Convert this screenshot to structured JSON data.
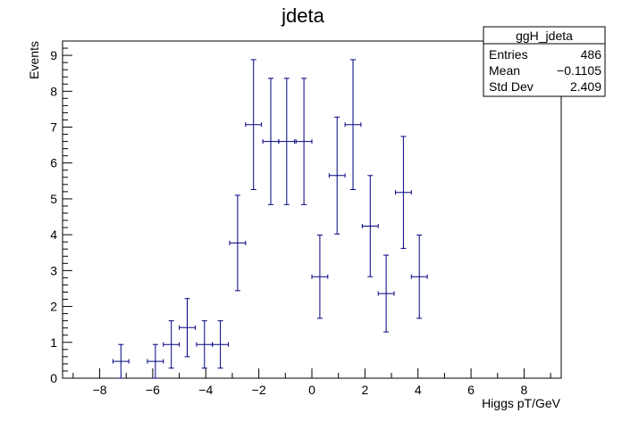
{
  "chart_data": {
    "type": "scatter",
    "title": "jdeta",
    "xlabel": "Higgs pT/GeV",
    "ylabel": "Events",
    "xlim": [
      -9.4,
      9.4
    ],
    "ylim": [
      0,
      9.4
    ],
    "xticks": [
      -8,
      -6,
      -4,
      -2,
      0,
      2,
      4,
      6,
      8
    ],
    "yticks": [
      0,
      1,
      2,
      3,
      4,
      5,
      6,
      7,
      8,
      9
    ],
    "grid": false,
    "series": [
      {
        "color": "#000080",
        "points": [
          {
            "x": -7.2,
            "y": 0.47,
            "xerr": 0.3,
            "ylow": 0.0,
            "yhigh": 0.94
          },
          {
            "x": -5.9,
            "y": 0.47,
            "xerr": 0.3,
            "ylow": 0.0,
            "yhigh": 0.94
          },
          {
            "x": -5.3,
            "y": 0.94,
            "xerr": 0.3,
            "ylow": 0.28,
            "yhigh": 1.6
          },
          {
            "x": -4.7,
            "y": 1.41,
            "xerr": 0.3,
            "ylow": 0.6,
            "yhigh": 2.22
          },
          {
            "x": -4.05,
            "y": 0.94,
            "xerr": 0.3,
            "ylow": 0.28,
            "yhigh": 1.6
          },
          {
            "x": -3.45,
            "y": 0.94,
            "xerr": 0.3,
            "ylow": 0.28,
            "yhigh": 1.6
          },
          {
            "x": -2.8,
            "y": 3.77,
            "xerr": 0.3,
            "ylow": 2.44,
            "yhigh": 5.1
          },
          {
            "x": -2.2,
            "y": 7.07,
            "xerr": 0.3,
            "ylow": 5.26,
            "yhigh": 8.88
          },
          {
            "x": -1.55,
            "y": 6.6,
            "xerr": 0.3,
            "ylow": 4.84,
            "yhigh": 8.36
          },
          {
            "x": -0.95,
            "y": 6.6,
            "xerr": 0.3,
            "ylow": 4.84,
            "yhigh": 8.36
          },
          {
            "x": -0.3,
            "y": 6.6,
            "xerr": 0.3,
            "ylow": 4.84,
            "yhigh": 8.36
          },
          {
            "x": 0.3,
            "y": 2.83,
            "xerr": 0.3,
            "ylow": 1.67,
            "yhigh": 3.99
          },
          {
            "x": 0.95,
            "y": 5.65,
            "xerr": 0.3,
            "ylow": 4.02,
            "yhigh": 7.28
          },
          {
            "x": 1.55,
            "y": 7.07,
            "xerr": 0.3,
            "ylow": 5.26,
            "yhigh": 8.88
          },
          {
            "x": 2.2,
            "y": 4.24,
            "xerr": 0.3,
            "ylow": 2.83,
            "yhigh": 5.65
          },
          {
            "x": 2.8,
            "y": 2.36,
            "xerr": 0.3,
            "ylow": 1.29,
            "yhigh": 3.43
          },
          {
            "x": 3.45,
            "y": 5.18,
            "xerr": 0.3,
            "ylow": 3.62,
            "yhigh": 6.74
          },
          {
            "x": 4.05,
            "y": 2.83,
            "xerr": 0.3,
            "ylow": 1.67,
            "yhigh": 3.99
          }
        ]
      }
    ],
    "stats_box": {
      "title": "ggH_jdeta",
      "rows": [
        {
          "label": "Entries",
          "value": "486"
        },
        {
          "label": "Mean",
          "value": "−0.1105"
        },
        {
          "label": "Std Dev",
          "value": "2.409"
        }
      ],
      "placement": "top-right"
    }
  }
}
